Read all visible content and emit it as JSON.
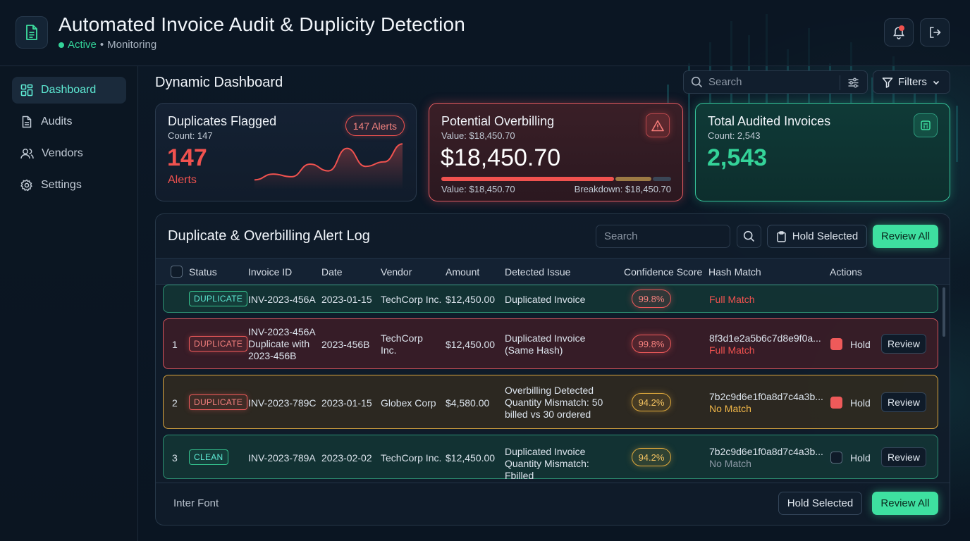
{
  "header": {
    "title": "Automated Invoice Audit & Duplicity Detection",
    "status_active": "Active",
    "status_sep": " • ",
    "status_rest": "Monitoring"
  },
  "sidebar": {
    "items": [
      {
        "label": "Dashboard",
        "icon": "grid-icon",
        "active": true
      },
      {
        "label": "Audits",
        "icon": "document-icon"
      },
      {
        "label": "Vendors",
        "icon": "users-icon"
      },
      {
        "label": "Settings",
        "icon": "gear-icon"
      }
    ]
  },
  "main": {
    "title": "Dynamic Dashboard",
    "search_placeholder": "Search",
    "filters_label": "Filters"
  },
  "cards": {
    "duplicates": {
      "title": "Duplicates Flagged",
      "sub": "Count: 147",
      "big": "147",
      "word": "Alerts",
      "pill": "147 Alerts",
      "spark": [
        0.15,
        0.28,
        0.22,
        0.5,
        0.35,
        0.85,
        0.45,
        0.55,
        0.95
      ]
    },
    "overbilling": {
      "title": "Potential Overbilling",
      "sub": "Value: $18,450.70",
      "big": "$18,450.70",
      "foot_left": "Value: $18,450.70",
      "foot_right": "Breakdown: $18,450.70",
      "breakdown": [
        0.76,
        0.16,
        0.08
      ]
    },
    "audited": {
      "title": "Total Audited Invoices",
      "sub": "Count: 2,543",
      "big": "2,543"
    }
  },
  "log": {
    "title": "Duplicate & Overbilling Alert Log",
    "search_placeholder": "Search",
    "hold_selected": "Hold Selected",
    "review_all": "Review All",
    "columns": [
      "Status",
      "Invoice ID",
      "Date",
      "Vendor",
      "Amount",
      "Detected Issue",
      "Confidence Score",
      "Hash Match",
      "Actions"
    ],
    "rows": [
      {
        "num": "",
        "status": "DUPLICATE",
        "invoice": "INV-2023-456A",
        "date": "2023-01-15",
        "vendor": "TechCorp Inc.",
        "amount": "$12,450.00",
        "issue": "Duplicated Invoice",
        "confidence": "99.8%",
        "hash": "",
        "match": "Full Match"
      },
      {
        "num": "1",
        "status": "DUPLICATE",
        "invoice": "INV-2023-456A Duplicate with 2023-456B",
        "date": "2023-456B",
        "vendor": "TechCorp Inc.",
        "amount": "$12,450.00",
        "issue": "Duplicated Invoice (Same Hash)",
        "confidence": "99.8%",
        "hash": "8f3d1e2a5b6c7d8e9f0a...",
        "match": "Full Match",
        "hold": "Hold",
        "review": "Review"
      },
      {
        "num": "2",
        "status": "DUPLICATE",
        "invoice": "INV-2023-789C",
        "date": "2023-01-15",
        "vendor": "Globex Corp",
        "amount": "$4,580.00",
        "issue": "Overbilling Detected Quantity Mismatch: 50 billed vs 30 ordered",
        "confidence": "94.2%",
        "hash": "7b2c9d6e1f0a8d7c4a3b...",
        "match": "No Match",
        "hold": "Hold",
        "review": "Review"
      },
      {
        "num": "3",
        "status": "CLEAN",
        "invoice": "INV-2023-789A",
        "date": "2023-02-02",
        "vendor": "TechCorp Inc.",
        "amount": "$12,450.00",
        "issue": "Duplicated Invoice Quantity Mismatch: Fbilled",
        "confidence": "94.2%",
        "hash": "7b2c9d6e1f0a8d7c4a3b...",
        "match": "No Match",
        "hold": "Hold",
        "review": "Review"
      }
    ],
    "footer_note": "Inter Font"
  }
}
